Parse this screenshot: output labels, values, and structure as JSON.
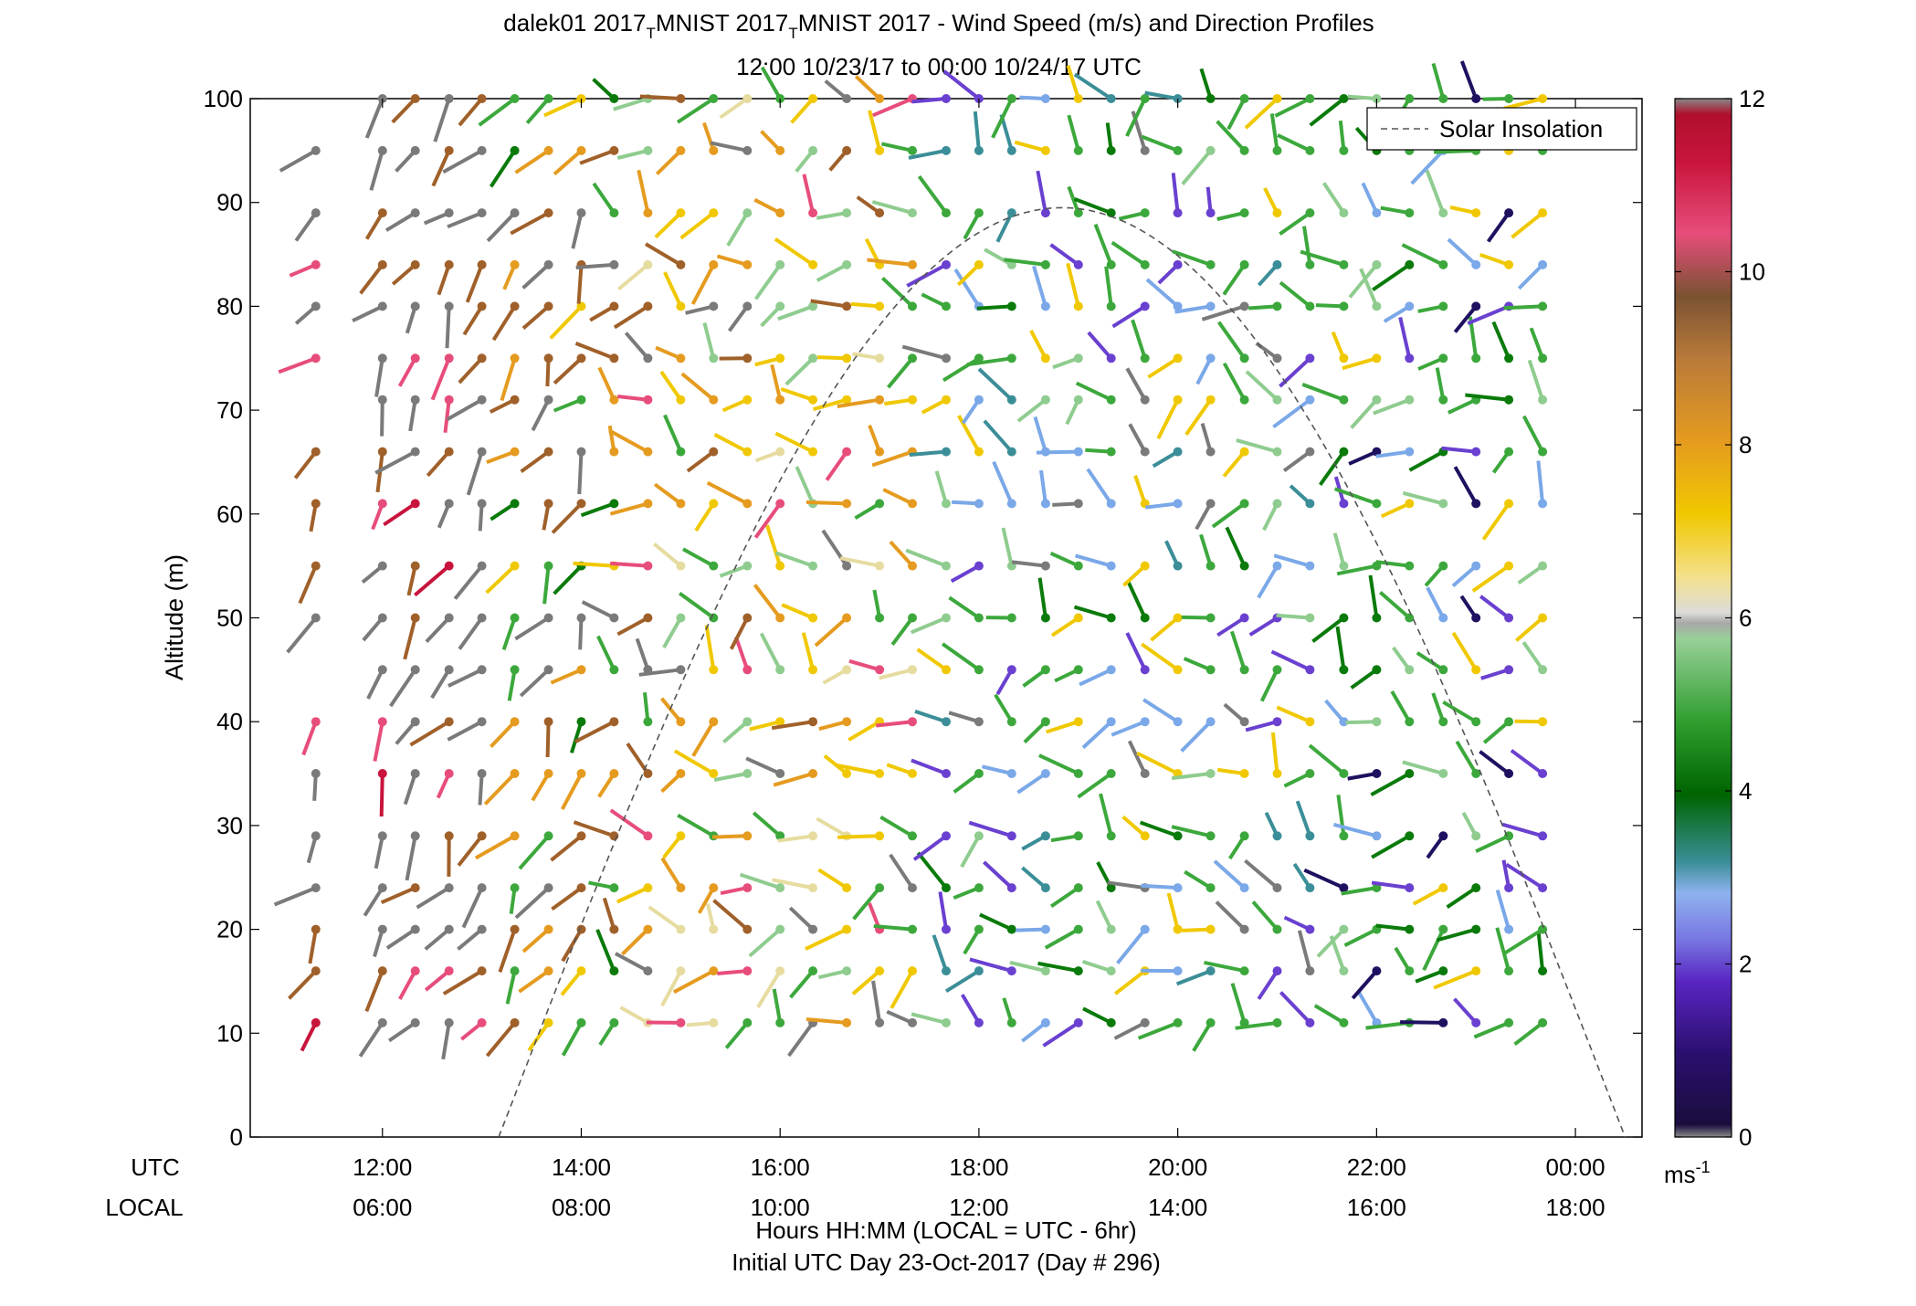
{
  "chart_data": {
    "type": "wind-barb-profile",
    "title_parts": [
      "dalek01 2017",
      "MNIST 2017",
      "MNIST 2017 - Wind Speed (m/s) and Direction Profiles"
    ],
    "title_sub": "T",
    "subtitle": "12:00 10/23/17 to 00:00 10/24/17  UTC",
    "ylabel": "Altitude (m)",
    "ylim": [
      0,
      100
    ],
    "y_ticks": [
      "0",
      "10",
      "20",
      "30",
      "40",
      "50",
      "60",
      "70",
      "80",
      "90",
      "100"
    ],
    "x_row1_label": "UTC",
    "x_row2_label": "LOCAL",
    "x_ticks_utc": [
      "12:00",
      "14:00",
      "16:00",
      "18:00",
      "20:00",
      "22:00",
      "00:00"
    ],
    "x_ticks_local": [
      "06:00",
      "08:00",
      "10:00",
      "12:00",
      "14:00",
      "16:00",
      "18:00"
    ],
    "xlabel": "Hours HH:MM  (LOCAL = UTC - 6hr)",
    "xlabel2": "Initial UTC Day 23-Oct-2017 (Day # 296)",
    "legend": {
      "label": "Solar Insolation",
      "placement": "top-right"
    },
    "colorbar": {
      "range": [
        0,
        12
      ],
      "ticks": [
        "0",
        "2",
        "4",
        "6",
        "8",
        "10",
        "12"
      ],
      "unit": "ms",
      "unit_exp": "-1"
    },
    "x_hours_utc": [
      11.33,
      12.0,
      12.33,
      12.67,
      13.0,
      13.33,
      13.67,
      14.0,
      14.33,
      14.67,
      15.0,
      15.33,
      15.67,
      16.0,
      16.33,
      16.67,
      17.0,
      17.33,
      17.67,
      18.0,
      18.33,
      18.67,
      19.0,
      19.33,
      19.67,
      20.0,
      20.33,
      20.67,
      21.0,
      21.33,
      21.67,
      22.0,
      22.33,
      22.67,
      23.0,
      23.33,
      23.67
    ],
    "altitudes_m": [
      11,
      16,
      20,
      24,
      29,
      35,
      40,
      45,
      50,
      55,
      61,
      66,
      71,
      75,
      80,
      84,
      89,
      95,
      100
    ],
    "solar_insolation_curve": {
      "start_utc": 13.17,
      "peak_utc": 18.83,
      "end_utc": 24.5,
      "peak_altitude_m": 89.5
    }
  }
}
